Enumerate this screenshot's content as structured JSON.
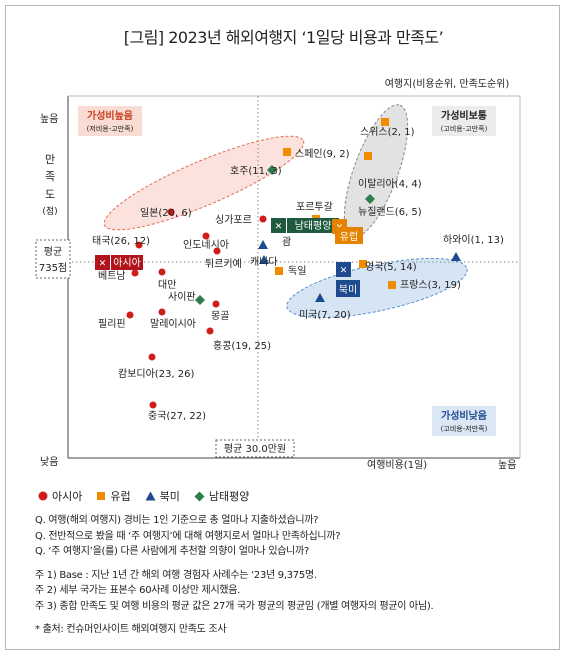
{
  "title": "[그림] 2023년 해외여행지 ‘1일당 비용과 만족도’",
  "chart_data": {
    "type": "scatter",
    "xlabel": "여행비용(1일)",
    "ylabel": [
      "만",
      "족",
      "도",
      "(점)"
    ],
    "x_low": "낮음",
    "x_high": "높음",
    "y_high": "높음",
    "rank_label": "여행지(비용순위, 만족도순위)",
    "ref_x_label": "평균 30.0만원",
    "ref_y_label": [
      "평균",
      "735점"
    ],
    "quadrants": [
      {
        "title": "가성비높음",
        "sub": "(저비용-고만족)",
        "position": "top-left"
      },
      {
        "title": "가성비보통",
        "sub": "(고비용-고만족)",
        "position": "top-right"
      },
      {
        "title": "가성비낮음",
        "sub": "(고비용-저만족)",
        "position": "bottom-right"
      }
    ],
    "series": [
      {
        "name": "아시아",
        "color": "#d11c1c",
        "marker": "circle"
      },
      {
        "name": "유럽",
        "color": "#f08c00",
        "marker": "square"
      },
      {
        "name": "북미",
        "color": "#1e4b8f",
        "marker": "triangle"
      },
      {
        "name": "남태평양",
        "color": "#2e7d4f",
        "marker": "diamond"
      }
    ],
    "points": [
      {
        "label": "스위스(2, 1)",
        "series": "유럽",
        "cost_rank": 2,
        "sat_rank": 1
      },
      {
        "label": "이탈리아(4, 4)",
        "series": "유럽",
        "cost_rank": 4,
        "sat_rank": 4
      },
      {
        "label": "뉴질랜드(6, 5)",
        "series": "남태평양",
        "cost_rank": 6,
        "sat_rank": 5
      },
      {
        "label": "스페인(9, 2)",
        "series": "유럽",
        "cost_rank": 9,
        "sat_rank": 2
      },
      {
        "label": "호주(11, 3)",
        "series": "남태평양",
        "cost_rank": 11,
        "sat_rank": 3
      },
      {
        "label": "일본(20, 6)",
        "series": "아시아",
        "cost_rank": 20,
        "sat_rank": 6
      },
      {
        "label": "싱가포르",
        "series": "아시아"
      },
      {
        "label": "포르투갈",
        "series": "유럽"
      },
      {
        "label": "인도네시아",
        "series": "아시아"
      },
      {
        "label": "태국(26, 12)",
        "series": "아시아",
        "cost_rank": 26,
        "sat_rank": 12
      },
      {
        "label": "괌",
        "series": "북미"
      },
      {
        "label": "하와이(1, 13)",
        "series": "북미",
        "cost_rank": 1,
        "sat_rank": 13
      },
      {
        "label": "캐나다",
        "series": "북미"
      },
      {
        "label": "튀르키예",
        "series": "아시아"
      },
      {
        "label": "독일",
        "series": "유럽"
      },
      {
        "label": "영국(5, 14)",
        "series": "유럽",
        "cost_rank": 5,
        "sat_rank": 14
      },
      {
        "label": "베트남",
        "series": "아시아"
      },
      {
        "label": "대만",
        "series": "아시아"
      },
      {
        "label": "프랑스(3, 19)",
        "series": "유럽",
        "cost_rank": 3,
        "sat_rank": 19
      },
      {
        "label": "사이판",
        "series": "남태평양"
      },
      {
        "label": "미국(7, 20)",
        "series": "북미",
        "cost_rank": 7,
        "sat_rank": 20
      },
      {
        "label": "필리핀",
        "series": "아시아"
      },
      {
        "label": "말레이시아",
        "series": "아시아"
      },
      {
        "label": "몽골",
        "series": "아시아"
      },
      {
        "label": "홍콩(19, 25)",
        "series": "아시아",
        "cost_rank": 19,
        "sat_rank": 25
      },
      {
        "label": "캄보디아(23, 26)",
        "series": "아시아",
        "cost_rank": 23,
        "sat_rank": 26
      },
      {
        "label": "중국(27, 22)",
        "series": "아시아",
        "cost_rank": 27,
        "sat_rank": 22
      }
    ],
    "region_tags": [
      "아시아",
      "남태평양",
      "유럽",
      "북미"
    ]
  },
  "legend": [
    "아시아",
    "유럽",
    "북미",
    "남태평양"
  ],
  "notes": {
    "questions": [
      "Q. 여행(해외 여행지) 경비는 1인 기준으로 총 얼마나 지출하셨습니까?",
      "Q. 전반적으로 봤을 때 ‘주 여행지’에 대해 여행지로서 얼마나 만족하십니까?",
      "Q. ‘주 여행지’을(를) 다른 사람에게 추천할 의향이 얼마나 있습니까?"
    ],
    "footnotes": [
      "주 1) Base : 지난 1년 간 해외 여행 경험자 사례수는 ‘23년 9,375명.",
      "주 2) 세부 국가는 표본수 60사례 이상만 제시했음.",
      "주 3) 종합 만족도 및 여행 비용의 평균 값은 27개 국가 평균의 평균임 (개별 여행자의 평균이 아님)."
    ],
    "source": "* 출처: 컨슈머인사이트 해외여행지 만족도 조사"
  }
}
